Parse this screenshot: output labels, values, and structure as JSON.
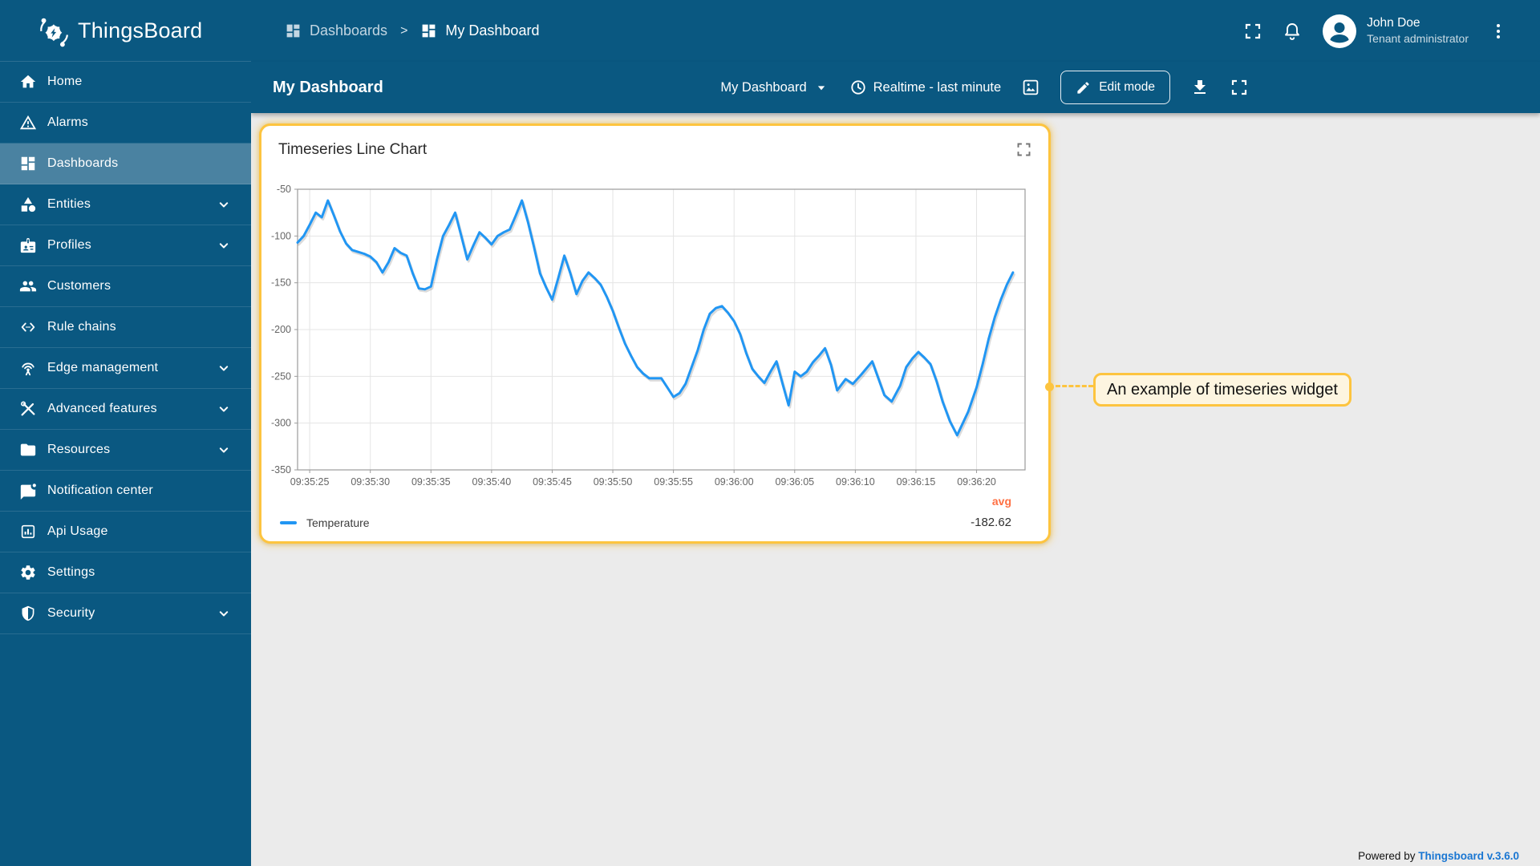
{
  "colors": {
    "primary": "#0a5881",
    "selected_item": "#4a82a1",
    "accent_yellow": "#fdc43f",
    "chart_line": "#2196f3",
    "avg_orange": "#ff7043",
    "link_blue": "#1976d2",
    "content_bg": "#ebebeb",
    "callout_bg": "#fdf5e0"
  },
  "sidebar": {
    "logo_text": "ThingsBoard",
    "logo_icon": "thingsboard-logo-icon",
    "items": [
      {
        "label": "Home",
        "icon": "home-icon",
        "expandable": false,
        "selected": false
      },
      {
        "label": "Alarms",
        "icon": "alarms-icon",
        "expandable": false,
        "selected": false
      },
      {
        "label": "Dashboards",
        "icon": "dashboards-icon",
        "expandable": false,
        "selected": true
      },
      {
        "label": "Entities",
        "icon": "entities-icon",
        "expandable": true,
        "selected": false
      },
      {
        "label": "Profiles",
        "icon": "profiles-icon",
        "expandable": true,
        "selected": false
      },
      {
        "label": "Customers",
        "icon": "customers-icon",
        "expandable": false,
        "selected": false
      },
      {
        "label": "Rule chains",
        "icon": "rule-chains-icon",
        "expandable": false,
        "selected": false
      },
      {
        "label": "Edge management",
        "icon": "edge-management-icon",
        "expandable": true,
        "selected": false
      },
      {
        "label": "Advanced features",
        "icon": "advanced-features-icon",
        "expandable": true,
        "selected": false
      },
      {
        "label": "Resources",
        "icon": "resources-icon",
        "expandable": true,
        "selected": false
      },
      {
        "label": "Notification center",
        "icon": "notification-center-icon",
        "expandable": false,
        "selected": false
      },
      {
        "label": "Api Usage",
        "icon": "api-usage-icon",
        "expandable": false,
        "selected": false
      },
      {
        "label": "Settings",
        "icon": "settings-icon",
        "expandable": false,
        "selected": false
      },
      {
        "label": "Security",
        "icon": "security-icon",
        "expandable": true,
        "selected": false
      }
    ]
  },
  "header": {
    "breadcrumb": [
      {
        "label": "Dashboards",
        "icon": "dashboards-icon"
      },
      {
        "label": "My Dashboard",
        "icon": "dashboards-icon"
      }
    ],
    "breadcrumb_separator": ">",
    "user": {
      "name": "John Doe",
      "role": "Tenant administrator"
    }
  },
  "toolbar": {
    "title": "My Dashboard",
    "state_select": "My Dashboard",
    "time_window": "Realtime - last minute",
    "edit_button_label": "Edit mode"
  },
  "widget": {
    "title": "Timeseries Line Chart"
  },
  "callout": {
    "text": "An example of timeseries widget"
  },
  "footer": {
    "powered_by": "Powered by",
    "link_text": "Thingsboard v.3.6.0"
  },
  "chart_data": {
    "type": "line",
    "title": "Timeseries Line Chart",
    "xlabel": "",
    "ylabel": "",
    "grid": true,
    "xlim": [
      0,
      60
    ],
    "ylim": [
      -350,
      -50
    ],
    "x_window_start": "09:35:24",
    "y_ticks": [
      -50,
      -100,
      -150,
      -200,
      -250,
      -300,
      -350
    ],
    "x_ticks": [
      {
        "t": 1,
        "label": "09:35:25"
      },
      {
        "t": 6,
        "label": "09:35:30"
      },
      {
        "t": 11,
        "label": "09:35:35"
      },
      {
        "t": 16,
        "label": "09:35:40"
      },
      {
        "t": 21,
        "label": "09:35:45"
      },
      {
        "t": 26,
        "label": "09:35:50"
      },
      {
        "t": 31,
        "label": "09:35:55"
      },
      {
        "t": 36,
        "label": "09:36:00"
      },
      {
        "t": 41,
        "label": "09:36:05"
      },
      {
        "t": 46,
        "label": "09:36:10"
      },
      {
        "t": 51,
        "label": "09:36:15"
      },
      {
        "t": 56,
        "label": "09:36:20"
      }
    ],
    "legend": {
      "position": "bottom",
      "series_label": "Temperature",
      "agg_label": "avg",
      "agg_value": "-182.62"
    },
    "series": [
      {
        "name": "Temperature",
        "color": "#2196f3",
        "points": [
          [
            0,
            -107
          ],
          [
            0.5,
            -100
          ],
          [
            1,
            -88
          ],
          [
            1.5,
            -75
          ],
          [
            2,
            -80
          ],
          [
            2.5,
            -62
          ],
          [
            3,
            -78
          ],
          [
            3.5,
            -95
          ],
          [
            4,
            -108
          ],
          [
            4.5,
            -115
          ],
          [
            5,
            -117
          ],
          [
            5.5,
            -119
          ],
          [
            6,
            -122
          ],
          [
            6.5,
            -128
          ],
          [
            7,
            -139
          ],
          [
            7.5,
            -128
          ],
          [
            8,
            -113
          ],
          [
            8.5,
            -118
          ],
          [
            9,
            -121
          ],
          [
            9.5,
            -140
          ],
          [
            10,
            -156
          ],
          [
            10.5,
            -157
          ],
          [
            11,
            -154
          ],
          [
            11.5,
            -125
          ],
          [
            12,
            -100
          ],
          [
            12.5,
            -88
          ],
          [
            13,
            -75
          ],
          [
            13.5,
            -100
          ],
          [
            14,
            -125
          ],
          [
            14.5,
            -110
          ],
          [
            15,
            -96
          ],
          [
            15.5,
            -102
          ],
          [
            16,
            -109
          ],
          [
            16.5,
            -100
          ],
          [
            17,
            -96
          ],
          [
            17.5,
            -93
          ],
          [
            18,
            -78
          ],
          [
            18.5,
            -62
          ],
          [
            19,
            -85
          ],
          [
            19.5,
            -112
          ],
          [
            20,
            -140
          ],
          [
            20.5,
            -155
          ],
          [
            21,
            -168
          ],
          [
            21.5,
            -145
          ],
          [
            22,
            -121
          ],
          [
            22.5,
            -140
          ],
          [
            23,
            -162
          ],
          [
            23.5,
            -148
          ],
          [
            24,
            -139
          ],
          [
            24.5,
            -145
          ],
          [
            25,
            -152
          ],
          [
            25.5,
            -165
          ],
          [
            26,
            -180
          ],
          [
            26.5,
            -198
          ],
          [
            27,
            -215
          ],
          [
            27.5,
            -228
          ],
          [
            28,
            -240
          ],
          [
            28.5,
            -247
          ],
          [
            29,
            -252
          ],
          [
            30,
            -252
          ],
          [
            30.5,
            -262
          ],
          [
            31,
            -272
          ],
          [
            31.5,
            -268
          ],
          [
            32,
            -258
          ],
          [
            32.5,
            -240
          ],
          [
            33,
            -222
          ],
          [
            33.5,
            -200
          ],
          [
            34,
            -183
          ],
          [
            34.5,
            -177
          ],
          [
            35,
            -175
          ],
          [
            35.5,
            -182
          ],
          [
            36,
            -191
          ],
          [
            36.5,
            -205
          ],
          [
            37,
            -225
          ],
          [
            37.5,
            -242
          ],
          [
            38,
            -250
          ],
          [
            38.5,
            -257
          ],
          [
            39,
            -245
          ],
          [
            39.5,
            -234
          ],
          [
            40,
            -258
          ],
          [
            40.5,
            -281
          ],
          [
            41,
            -245
          ],
          [
            41.5,
            -250
          ],
          [
            42,
            -245
          ],
          [
            42.5,
            -235
          ],
          [
            43,
            -228
          ],
          [
            43.5,
            -220
          ],
          [
            44,
            -238
          ],
          [
            44.5,
            -265
          ],
          [
            45.2,
            -253
          ],
          [
            45.8,
            -258
          ],
          [
            46.5,
            -248
          ],
          [
            47.4,
            -234
          ],
          [
            48.4,
            -270
          ],
          [
            49,
            -277
          ],
          [
            49.7,
            -260
          ],
          [
            50.2,
            -240
          ],
          [
            50.7,
            -231
          ],
          [
            51.2,
            -224
          ],
          [
            51.7,
            -230
          ],
          [
            52.2,
            -237
          ],
          [
            52.7,
            -255
          ],
          [
            53.2,
            -277
          ],
          [
            53.8,
            -298
          ],
          [
            54.4,
            -313
          ],
          [
            55.3,
            -288
          ],
          [
            56,
            -262
          ],
          [
            56.5,
            -237
          ],
          [
            57,
            -210
          ],
          [
            57.5,
            -187
          ],
          [
            58,
            -168
          ],
          [
            58.5,
            -152
          ],
          [
            59,
            -139
          ]
        ]
      }
    ]
  }
}
